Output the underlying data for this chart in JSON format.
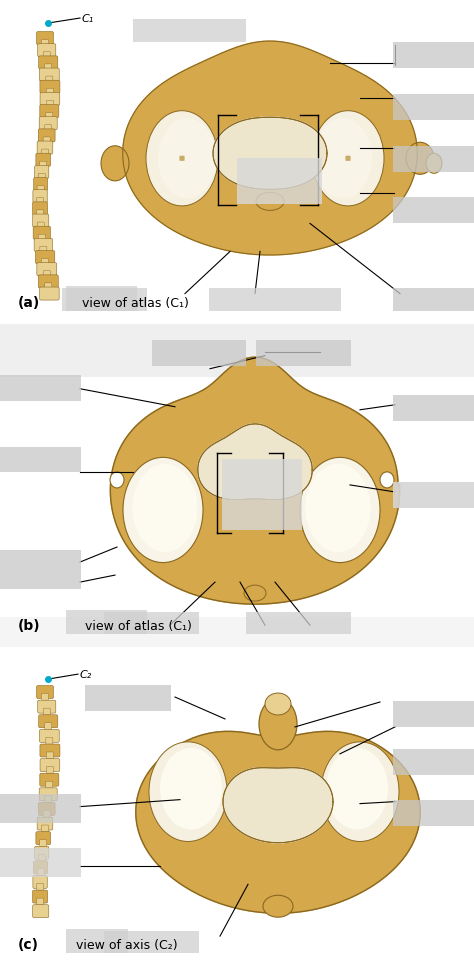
{
  "bg_color": "#ffffff",
  "panel_a": {
    "label": "(a)",
    "subtitle": "view of atlas (C₁)"
  },
  "panel_b": {
    "label": "(b)",
    "subtitle": "view of atlas (C₁)"
  },
  "panel_c": {
    "label": "(c)",
    "subtitle": " view of axis (C₂)"
  },
  "bone_light": "#e8d090",
  "bone_mid": "#d4a84b",
  "bone_dark": "#b08828",
  "bone_edge": "#8a6820",
  "articular_fill": "#f5f0e0",
  "canal_fill": "#ede5cc",
  "gray_box": "#cccccc",
  "spine_light": "#dfc070",
  "spine_dark": "#a07830",
  "cyan": "#00aacc",
  "black": "#000000",
  "white": "#ffffff"
}
